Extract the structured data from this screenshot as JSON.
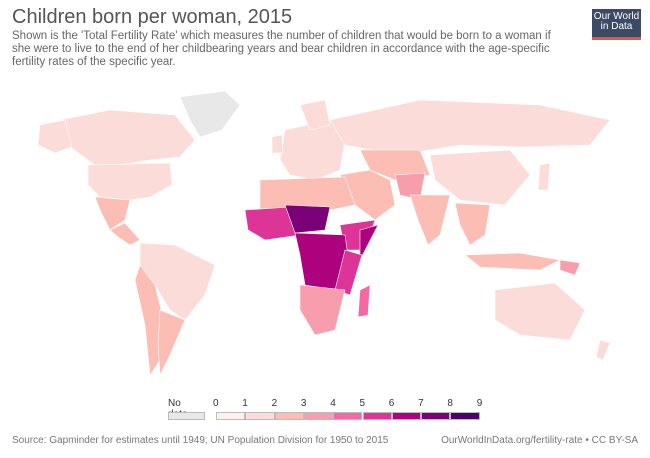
{
  "title": "Children born per woman, 2015",
  "subtitle": "Shown is the 'Total Fertility Rate' which measures the number of children that would be born to a woman if she were to live to the end of her childbearing years and bear children in accordance with the age-specific fertility rates of the specific year.",
  "logo": {
    "line1": "Our World",
    "line2": "in Data"
  },
  "legend": {
    "no_data_label": "No data",
    "no_data_color": "#e8e8e8",
    "ticks": [
      "0",
      "1",
      "2",
      "3",
      "4",
      "5",
      "6",
      "7",
      "8",
      "9"
    ],
    "bins": [
      {
        "range": "0-1",
        "color": "#fef0ec"
      },
      {
        "range": "1-2",
        "color": "#fcdcd8"
      },
      {
        "range": "2-3",
        "color": "#fbbdb4"
      },
      {
        "range": "3-4",
        "color": "#f89dac"
      },
      {
        "range": "4-5",
        "color": "#f468a3"
      },
      {
        "range": "5-6",
        "color": "#dd3497"
      },
      {
        "range": "6-7",
        "color": "#ae017e"
      },
      {
        "range": "7-8",
        "color": "#7a0177"
      },
      {
        "range": "8-9",
        "color": "#49006a"
      }
    ]
  },
  "source": "Source: Gapminder for estimates until 1949; UN Population Division for 1950 to 2015",
  "url": "OurWorldInData.org/fertility-rate • CC BY-SA"
}
